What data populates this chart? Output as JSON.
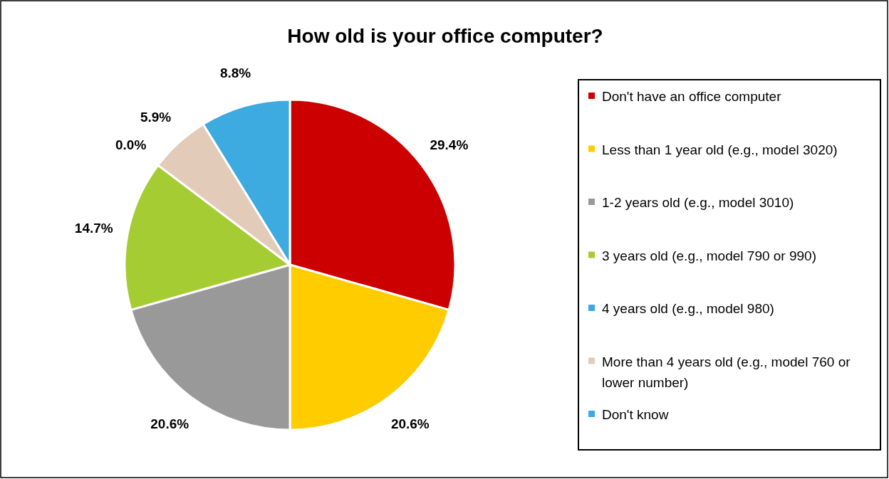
{
  "chart_data": {
    "type": "pie",
    "title": "How old is your office computer?",
    "categories": [
      "Don't have an office computer",
      "Less than 1 year old (e.g., model 3020)",
      "1-2 years old (e.g., model 3010)",
      "3 years old (e.g., model 790 or 990)",
      "4 years old (e.g., model 980)",
      "More than 4 years old (e.g., model 760 or lower number)",
      "Don't know"
    ],
    "values": [
      29.4,
      20.6,
      20.6,
      14.7,
      0.0,
      5.9,
      8.8
    ],
    "colors": [
      "#cc0000",
      "#ffcc00",
      "#999999",
      "#a5cc33",
      "#3daae0",
      "#e2cbb9",
      "#3daae0"
    ],
    "value_labels": [
      "29.4%",
      "20.6%",
      "20.6%",
      "14.7%",
      "0.0%",
      "5.9%",
      "8.8%"
    ],
    "legend": "right"
  }
}
